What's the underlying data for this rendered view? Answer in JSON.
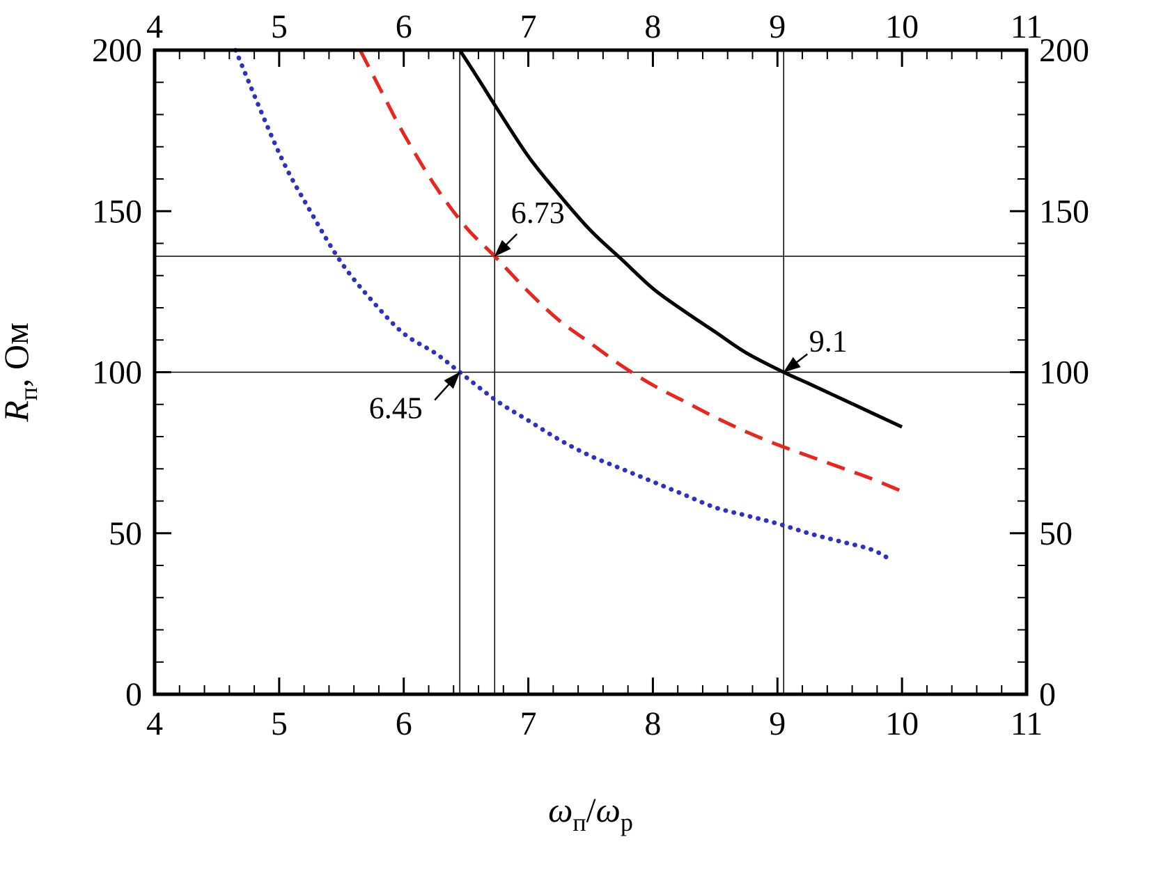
{
  "figure": {
    "background": "#ffffff"
  },
  "chart_data": {
    "type": "line",
    "title": "",
    "x_axis": {
      "min": 4,
      "max": 11,
      "major_ticks": [
        4,
        5,
        6,
        7,
        8,
        9,
        10,
        11
      ],
      "minor_step": 0.2,
      "label_parts": [
        {
          "t": "ω",
          "italic": true
        },
        {
          "t": "п",
          "sub": true
        },
        {
          "t": "/"
        },
        {
          "t": "ω",
          "italic": true
        },
        {
          "t": "p",
          "sub": true
        }
      ]
    },
    "y_axis": {
      "min": 0,
      "max": 200,
      "major_ticks": [
        0,
        50,
        100,
        150,
        200
      ],
      "minor_step": 10,
      "label_parts": [
        {
          "t": "R",
          "italic": true
        },
        {
          "t": "п",
          "sub": true
        },
        {
          "t": ", Ом"
        }
      ]
    },
    "series": [
      {
        "name": "black-solid",
        "color": "#000000",
        "style": "solid",
        "points": [
          [
            6.45,
            200
          ],
          [
            6.6,
            191
          ],
          [
            6.73,
            183
          ],
          [
            7.0,
            167
          ],
          [
            7.25,
            155
          ],
          [
            7.5,
            144
          ],
          [
            7.75,
            135
          ],
          [
            8.0,
            126
          ],
          [
            8.25,
            119
          ],
          [
            8.5,
            112.5
          ],
          [
            8.75,
            106
          ],
          [
            9.05,
            100
          ],
          [
            9.25,
            96.5
          ],
          [
            9.5,
            92
          ],
          [
            9.75,
            87.5
          ],
          [
            10.0,
            83
          ]
        ]
      },
      {
        "name": "red-dashed",
        "color": "#e8261f",
        "style": "dashed",
        "points": [
          [
            5.65,
            200
          ],
          [
            5.85,
            185
          ],
          [
            6.0,
            174
          ],
          [
            6.25,
            158
          ],
          [
            6.5,
            145
          ],
          [
            6.73,
            136
          ],
          [
            7.0,
            125
          ],
          [
            7.25,
            116
          ],
          [
            7.5,
            109
          ],
          [
            7.75,
            102
          ],
          [
            8.0,
            96
          ],
          [
            8.25,
            91
          ],
          [
            8.5,
            86
          ],
          [
            8.75,
            81.5
          ],
          [
            9.0,
            77.5
          ],
          [
            9.25,
            74
          ],
          [
            9.5,
            70.5
          ],
          [
            9.75,
            67
          ],
          [
            10.0,
            63
          ]
        ]
      },
      {
        "name": "blue-dotted",
        "color": "#2f2fc0",
        "style": "dotted",
        "points": [
          [
            4.65,
            200
          ],
          [
            5.0,
            168
          ],
          [
            5.25,
            150
          ],
          [
            5.5,
            134
          ],
          [
            5.75,
            122
          ],
          [
            6.0,
            112
          ],
          [
            6.25,
            106
          ],
          [
            6.45,
            100
          ],
          [
            6.75,
            91
          ],
          [
            7.0,
            85
          ],
          [
            7.25,
            79
          ],
          [
            7.5,
            74
          ],
          [
            7.75,
            70
          ],
          [
            8.0,
            66
          ],
          [
            8.25,
            62
          ],
          [
            8.5,
            58
          ],
          [
            8.75,
            55.5
          ],
          [
            9.0,
            53
          ],
          [
            9.25,
            50
          ],
          [
            9.5,
            47.5
          ],
          [
            9.75,
            45
          ],
          [
            9.9,
            42
          ]
        ]
      }
    ],
    "reference_lines": {
      "horizontal": [
        136,
        100
      ],
      "vertical": [
        6.45,
        6.73,
        9.05
      ]
    },
    "annotations": [
      {
        "label": "6.73",
        "x": 6.73,
        "y": 136,
        "label_offset": [
          62,
          -48
        ],
        "arrow_from": [
          32,
          -32
        ]
      },
      {
        "label": "9.1",
        "x": 9.05,
        "y": 100,
        "label_offset": [
          64,
          -30
        ],
        "arrow_from": [
          34,
          -26
        ]
      },
      {
        "label": "6.45",
        "x": 6.45,
        "y": 100,
        "label_offset": [
          -92,
          66
        ],
        "arrow_from": [
          -36,
          40
        ]
      }
    ]
  }
}
